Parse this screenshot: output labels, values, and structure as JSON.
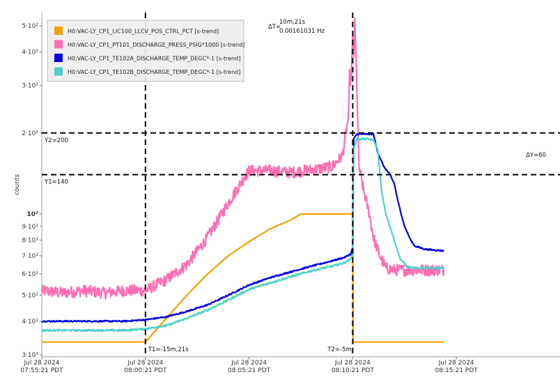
{
  "chart_data": {
    "type": "line",
    "ylabel": "counts",
    "yscale": "log",
    "ylim": [
      29.5,
      560
    ],
    "xlim_minutes": [
      -5,
      20
    ],
    "grid": false,
    "legend_position": "top-left",
    "x_tick_labels": [
      {
        "minute": -5,
        "date": "Jul 28 2024",
        "time": "07:55:21 PDT"
      },
      {
        "minute": 0,
        "date": "Jul 28 2024",
        "time": "08:00:21 PDT"
      },
      {
        "minute": 5,
        "date": "Jul 28 2024",
        "time": "08:05:21 PDT"
      },
      {
        "minute": 10,
        "date": "Jul 28 2024",
        "time": "08:10:21 PDT"
      },
      {
        "minute": 15,
        "date": "Jul 28 2024",
        "time": "08:15:21 PDT"
      }
    ],
    "y_tick_labels": [
      {
        "value": 30,
        "label": "3·10¹"
      },
      {
        "value": 40,
        "label": "4·10¹"
      },
      {
        "value": 50,
        "label": "5·10¹"
      },
      {
        "value": 60,
        "label": "6·10¹"
      },
      {
        "value": 70,
        "label": "7·10¹"
      },
      {
        "value": 80,
        "label": "8·10¹"
      },
      {
        "value": 90,
        "label": "9·10¹"
      },
      {
        "value": 100,
        "label": "10²"
      },
      {
        "value": 200,
        "label": "2·10²"
      },
      {
        "value": 300,
        "label": "3·10²"
      },
      {
        "value": 400,
        "label": "4·10²"
      },
      {
        "value": 500,
        "label": "5·10²"
      }
    ],
    "cursors": {
      "t1": {
        "minute": 0,
        "label": "T1=-15m,21s"
      },
      "t2": {
        "minute": 10,
        "label": "T2=-5m"
      },
      "y1": {
        "value": 140,
        "label": "Y1=140"
      },
      "y2": {
        "value": 200,
        "label": "Y2=200"
      },
      "delta_t_label": "ΔT=",
      "delta_t_value": "10m,21s",
      "delta_t_freq": "0.00161031 Hz",
      "delta_y_label": "ΔY=60"
    },
    "series": [
      {
        "name": "H0:VAC-LY_CP1_LIC100_LLCV_POS_CTRL_PCT [s-trend]",
        "color": "#f5a000",
        "noise": 0,
        "points": [
          [
            -5,
            33.5
          ],
          [
            0,
            33.5
          ],
          [
            0.5,
            37
          ],
          [
            1,
            41
          ],
          [
            2,
            50
          ],
          [
            3,
            60
          ],
          [
            4,
            70
          ],
          [
            5,
            79
          ],
          [
            6,
            88
          ],
          [
            7,
            95
          ],
          [
            7.5,
            100
          ],
          [
            10,
            100
          ],
          [
            10.02,
            33.5
          ],
          [
            14.4,
            33.5
          ]
        ]
      },
      {
        "name": "H0:VAC-LY_CP1_PT101_DISCHARGE_PRESS_PSIG*1000 [s-trend]",
        "color": "#ff6eb4",
        "noise": 0.05,
        "points": [
          [
            -5,
            52
          ],
          [
            -4,
            51
          ],
          [
            -3,
            52
          ],
          [
            -2,
            51
          ],
          [
            -1,
            52
          ],
          [
            0,
            52
          ],
          [
            1,
            57
          ],
          [
            2,
            65
          ],
          [
            3,
            82
          ],
          [
            4,
            110
          ],
          [
            4.8,
            138
          ],
          [
            5,
            145
          ],
          [
            6,
            145
          ],
          [
            7,
            143
          ],
          [
            8,
            146
          ],
          [
            9,
            150
          ],
          [
            9.5,
            165
          ],
          [
            9.8,
            230
          ],
          [
            9.85,
            330
          ],
          [
            9.9,
            300
          ],
          [
            10,
            440
          ],
          [
            10.05,
            390
          ],
          [
            10.1,
            510
          ],
          [
            10.2,
            300
          ],
          [
            10.3,
            150
          ],
          [
            10.5,
            125
          ],
          [
            10.8,
            100
          ],
          [
            11,
            82
          ],
          [
            11.3,
            70
          ],
          [
            11.6,
            63
          ],
          [
            12,
            62
          ],
          [
            13,
            62
          ],
          [
            14,
            62
          ],
          [
            14.4,
            62
          ]
        ]
      },
      {
        "name": "H0:VAC-LY_CP1_TE102A_DISCHARGE_TEMP_DEGC*-1 [s-trend]",
        "color": "#0000e0",
        "noise": 0.006,
        "points": [
          [
            -5,
            40
          ],
          [
            -3,
            40
          ],
          [
            -1,
            40
          ],
          [
            0,
            40.5
          ],
          [
            1,
            41.5
          ],
          [
            2,
            43.5
          ],
          [
            3,
            46
          ],
          [
            4,
            50
          ],
          [
            5,
            54.5
          ],
          [
            6,
            58
          ],
          [
            7,
            61
          ],
          [
            8,
            64
          ],
          [
            9,
            67
          ],
          [
            9.6,
            69
          ],
          [
            9.9,
            71
          ],
          [
            10,
            75
          ],
          [
            10.05,
            190
          ],
          [
            10.2,
            198
          ],
          [
            11,
            198
          ],
          [
            11.2,
            170
          ],
          [
            11.5,
            150
          ],
          [
            11.8,
            140
          ],
          [
            12,
            130
          ],
          [
            12.2,
            110
          ],
          [
            12.5,
            90
          ],
          [
            12.8,
            80
          ],
          [
            13,
            76
          ],
          [
            13.5,
            74
          ],
          [
            14.4,
            73
          ]
        ]
      },
      {
        "name": "H0:VAC-LY_CP1_TE102B_DISCHARGE_TEMP_DEGC*-1 [s-trend]",
        "color": "#4fd0c8",
        "noise": 0.008,
        "points": [
          [
            -5,
            37
          ],
          [
            -3,
            37
          ],
          [
            -1,
            37
          ],
          [
            0,
            37.5
          ],
          [
            1,
            38.5
          ],
          [
            2,
            41
          ],
          [
            3,
            44
          ],
          [
            4,
            48
          ],
          [
            5,
            52.5
          ],
          [
            6,
            55.5
          ],
          [
            7,
            58.5
          ],
          [
            8,
            61.5
          ],
          [
            9,
            64
          ],
          [
            9.6,
            66
          ],
          [
            9.9,
            68
          ],
          [
            10,
            72
          ],
          [
            10.05,
            175
          ],
          [
            10.2,
            190
          ],
          [
            10.7,
            190
          ],
          [
            11,
            188
          ],
          [
            11.2,
            175
          ],
          [
            11.4,
            120
          ],
          [
            11.6,
            100
          ],
          [
            12,
            80
          ],
          [
            12.3,
            68
          ],
          [
            12.6,
            64
          ],
          [
            13,
            63
          ],
          [
            14.4,
            63
          ]
        ]
      }
    ]
  }
}
